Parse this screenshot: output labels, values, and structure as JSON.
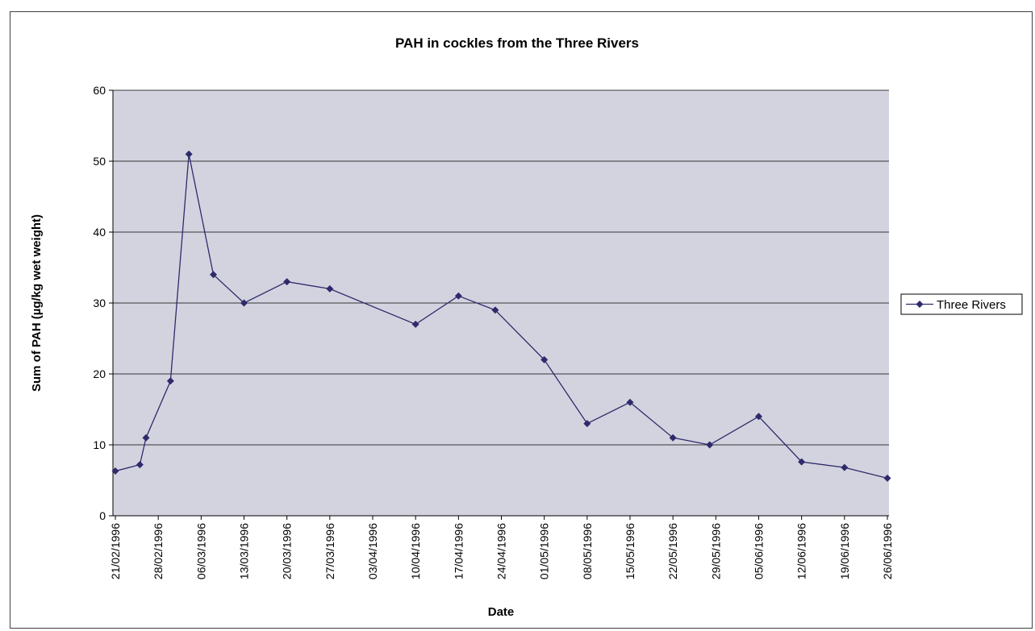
{
  "chart_data": {
    "type": "line",
    "title": "PAH in cockles from the Three Rivers",
    "xlabel": "Date",
    "ylabel": "Sum of PAH (µg/kg wet weight)",
    "ylim": [
      0,
      60
    ],
    "yticks": [
      0,
      10,
      20,
      30,
      40,
      50,
      60
    ],
    "xlim": [
      "21/02/1996",
      "26/06/1996"
    ],
    "xticks": [
      "21/02/1996",
      "28/02/1996",
      "06/03/1996",
      "13/03/1996",
      "20/03/1996",
      "27/03/1996",
      "03/04/1996",
      "10/04/1996",
      "17/04/1996",
      "24/04/1996",
      "01/05/1996",
      "08/05/1996",
      "15/05/1996",
      "22/05/1996",
      "29/05/1996",
      "05/06/1996",
      "12/06/1996",
      "19/06/1996",
      "26/06/1996"
    ],
    "grid": true,
    "legend_position": "right",
    "plot_background": "#D3D3DF",
    "series_color": "#2E2A6B",
    "series": [
      {
        "name": "Three Rivers",
        "x": [
          "21/02/1996",
          "25/02/1996",
          "26/02/1996",
          "01/03/1996",
          "04/03/1996",
          "08/03/1996",
          "13/03/1996",
          "20/03/1996",
          "27/03/1996",
          "10/04/1996",
          "17/04/1996",
          "23/04/1996",
          "01/05/1996",
          "08/05/1996",
          "15/05/1996",
          "22/05/1996",
          "28/05/1996",
          "05/06/1996",
          "12/06/1996",
          "19/06/1996",
          "26/06/1996"
        ],
        "y": [
          6.3,
          7.2,
          11,
          19,
          51,
          34,
          30,
          33,
          32,
          27,
          31,
          29,
          22,
          13,
          16,
          11,
          10,
          14,
          7.6,
          6.8,
          5.3
        ]
      }
    ]
  }
}
